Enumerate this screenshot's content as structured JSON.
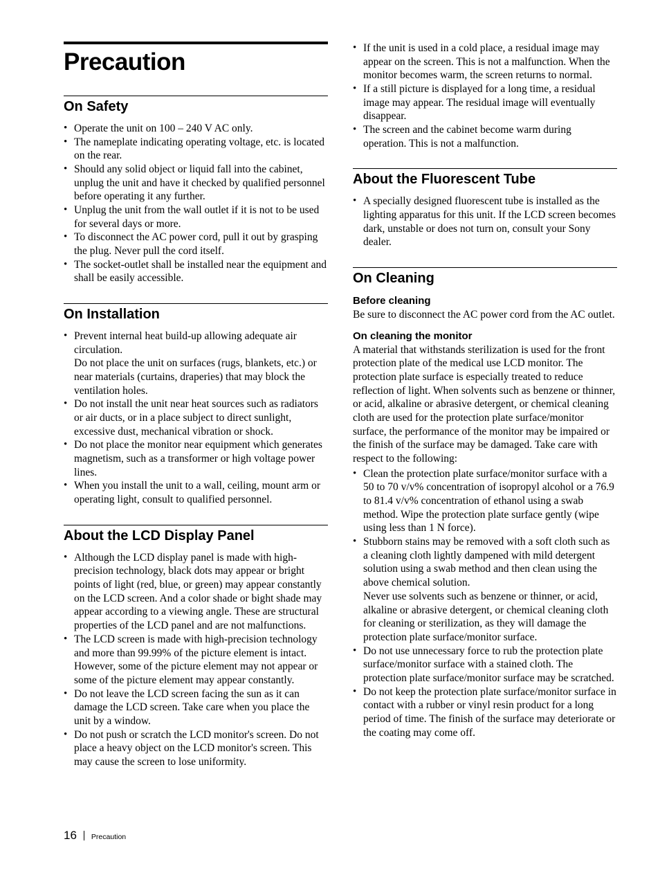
{
  "title": "Precaution",
  "page_number": "16",
  "footer_label": "Precaution",
  "left_column": {
    "sections": [
      {
        "heading": "On Safety",
        "items": [
          "Operate the unit on 100 – 240 V AC only.",
          "The nameplate indicating operating voltage, etc. is located on the rear.",
          "Should any solid object or liquid fall into the cabinet, unplug the unit and have it checked by qualified personnel before operating it any further.",
          "Unplug the unit from the wall outlet if it is not to be used for several days or more.",
          "To disconnect the AC power cord, pull it out by grasping the plug. Never pull the cord itself.",
          "The socket-outlet shall be installed near the equipment and shall be easily accessible."
        ]
      },
      {
        "heading": "On Installation",
        "items": [
          "Prevent internal heat build-up allowing adequate air circulation.\nDo not place the unit on surfaces (rugs, blankets, etc.) or near materials (curtains, draperies) that may block the ventilation holes.",
          "Do not install the unit near heat sources such as radiators or air ducts, or in a place subject to direct sunlight, excessive dust, mechanical vibration or shock.",
          "Do not place the monitor near equipment which generates magnetism, such as a transformer or high voltage power lines.",
          "When you install the unit to a wall, ceiling, mount arm or operating light, consult to qualified personnel."
        ]
      },
      {
        "heading": "About the LCD Display Panel",
        "items": [
          "Although the LCD display panel is made with high-precision technology, black dots may appear or bright points of light (red, blue, or green) may appear constantly on the LCD screen.  And a color shade or bight shade may appear according to a viewing angle. These are structural properties of the LCD panel and are not malfunctions.",
          "The LCD screen is made with high-precision technology and more than 99.99% of the picture element is intact. However, some of the picture element may not appear or some of the picture element may appear constantly.",
          "Do not leave the LCD screen facing the sun as it can damage the LCD screen. Take care when you place the unit by a window.",
          "Do not push or scratch the LCD monitor's screen. Do not place a heavy object on the LCD monitor's screen. This may cause the screen to lose uniformity."
        ]
      }
    ]
  },
  "right_column": {
    "top_items": [
      "If the unit is used in a cold place, a residual image may appear on the screen. This is not a malfunction. When the monitor becomes warm, the screen returns to normal.",
      "If a still picture is displayed for a long time, a residual image may appear. The residual image will eventually disappear.",
      "The screen and the cabinet become warm during operation. This is not a malfunction."
    ],
    "sections": [
      {
        "heading": "About the Fluorescent Tube",
        "items": [
          "A specially designed fluorescent tube is installed as the lighting apparatus for this unit. If the LCD screen becomes dark, unstable or does not turn on, consult your Sony dealer."
        ]
      }
    ],
    "cleaning": {
      "heading": "On Cleaning",
      "sub1_heading": "Before cleaning",
      "sub1_body": "Be sure to disconnect the AC power cord from the AC outlet.",
      "sub2_heading": "On cleaning the monitor",
      "sub2_body": "A material that withstands sterilization is used for the front protection plate of the medical use LCD monitor. The protection plate surface is especially treated to reduce reflection of light.  When solvents such as benzene or thinner, or acid, alkaline or abrasive detergent, or chemical cleaning cloth are used for the protection plate surface/monitor surface, the performance of the monitor may be impaired or the finish of the surface may be damaged.  Take care with respect to the following:",
      "sub2_items": [
        "Clean the protection plate surface/monitor surface with a 50 to 70 v/v% concentration of isopropyl alcohol or a 76.9 to 81.4 v/v% concentration of ethanol using a swab method.  Wipe the protection plate surface gently (wipe using less than 1 N force).",
        "Stubborn stains may be removed with a soft cloth such as a cleaning cloth lightly dampened with mild detergent solution using a swab method and then clean using the above chemical solution.\nNever use solvents such as benzene or thinner, or acid, alkaline or abrasive detergent, or chemical cleaning cloth for cleaning or sterilization, as they will damage the protection plate surface/monitor surface.",
        "Do not use unnecessary force to rub the protection plate surface/monitor surface with a stained cloth. The protection plate surface/monitor surface may be scratched.",
        "Do not keep the protection plate surface/monitor surface in contact with a rubber or vinyl resin product for a long period of time.  The finish of the surface may deteriorate or the coating may come off."
      ]
    }
  }
}
